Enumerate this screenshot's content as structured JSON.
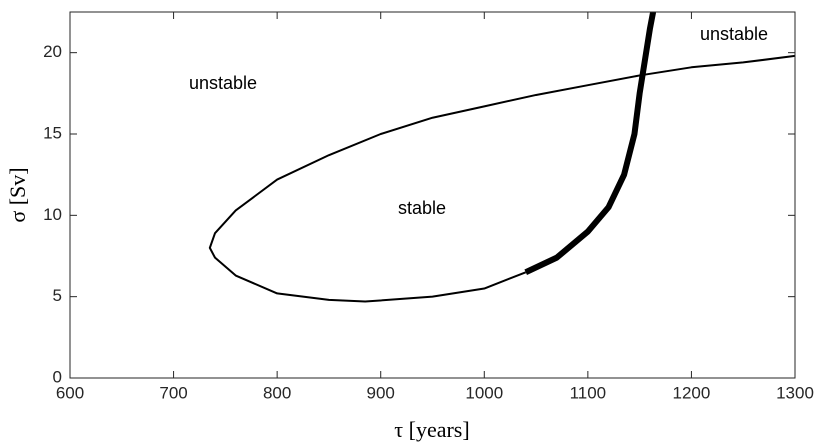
{
  "chart_data": {
    "type": "line",
    "xlabel": "τ [years]",
    "ylabel": "σ [Sv]",
    "xlim": [
      600,
      1300
    ],
    "xticks": [
      600,
      700,
      800,
      900,
      1000,
      1100,
      1200,
      1300
    ],
    "ylim": [
      0,
      22.5
    ],
    "yticks": [
      0,
      5,
      10,
      15,
      20
    ],
    "grid": false,
    "annotations": [
      "unstable",
      "unstable",
      "stable"
    ],
    "series": [
      {
        "color": "#000000",
        "width": 2,
        "x": [
          1300,
          1250,
          1200,
          1150,
          1100,
          1050,
          1000,
          950,
          900,
          850,
          800,
          760,
          740,
          735,
          740,
          760,
          800,
          850,
          885,
          950,
          1000,
          1040
        ],
        "values": [
          19.8,
          19.4,
          19.1,
          18.6,
          18.0,
          17.4,
          16.7,
          16.0,
          15.0,
          13.7,
          12.2,
          10.3,
          8.9,
          8.0,
          7.4,
          6.3,
          5.2,
          4.8,
          4.7,
          5.0,
          5.5,
          6.5
        ]
      },
      {
        "color": "#000000",
        "width": 6,
        "x": [
          1040,
          1070,
          1100,
          1120,
          1135,
          1145,
          1150,
          1155,
          1160,
          1163
        ],
        "values": [
          6.5,
          7.4,
          9.0,
          10.5,
          12.5,
          15.0,
          17.5,
          19.5,
          21.5,
          22.5
        ]
      }
    ]
  }
}
